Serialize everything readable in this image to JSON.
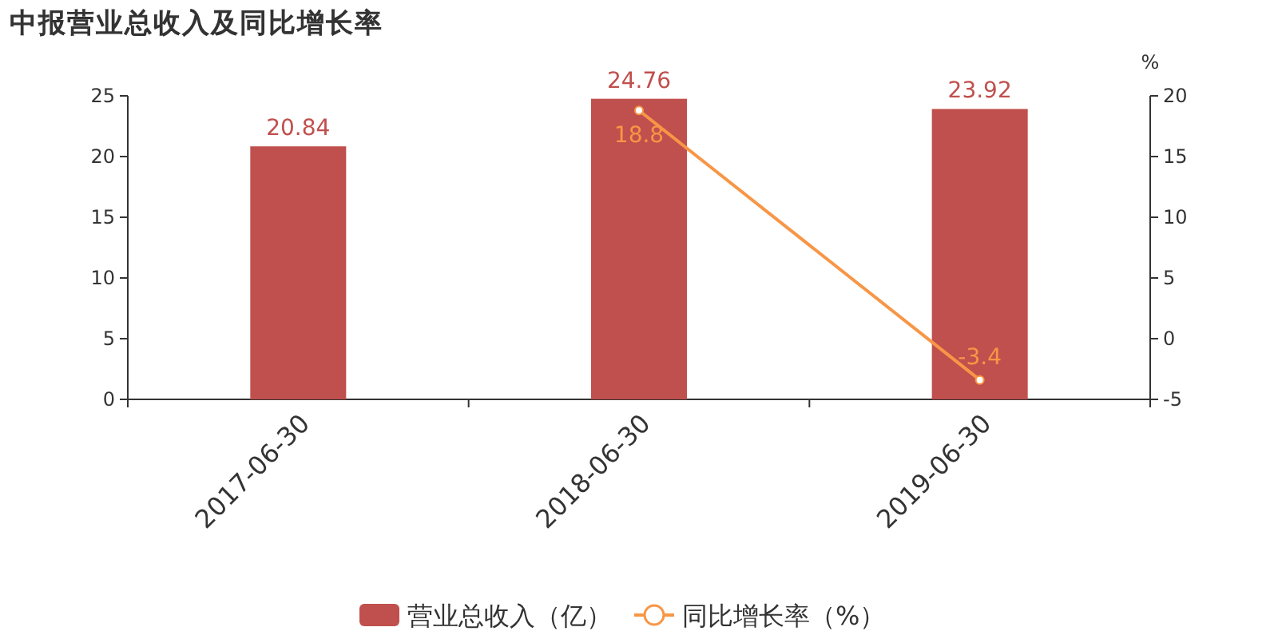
{
  "chart_data": {
    "type": "bar",
    "title": "中报营业总收入及同比增长率",
    "categories": [
      "2017-06-30",
      "2018-06-30",
      "2019-06-30"
    ],
    "series": [
      {
        "name": "营业总收入（亿）",
        "color": "#c0504d",
        "values": [
          20.84,
          24.76,
          23.92
        ]
      },
      {
        "name": "同比增长率（%）",
        "type": "line",
        "axis": "y2",
        "color": "#f79646",
        "values": [
          null,
          18.8,
          -3.4
        ]
      }
    ],
    "ylim": [
      0,
      25
    ],
    "yticks": [
      0,
      5,
      10,
      15,
      20,
      25
    ],
    "y2lim": [
      -5,
      20
    ],
    "y2ticks": [
      -5,
      0,
      5,
      10,
      15,
      20
    ],
    "y2label": "%",
    "data_labels": true,
    "legend": "bottom",
    "grid": false,
    "marker": "circle"
  }
}
